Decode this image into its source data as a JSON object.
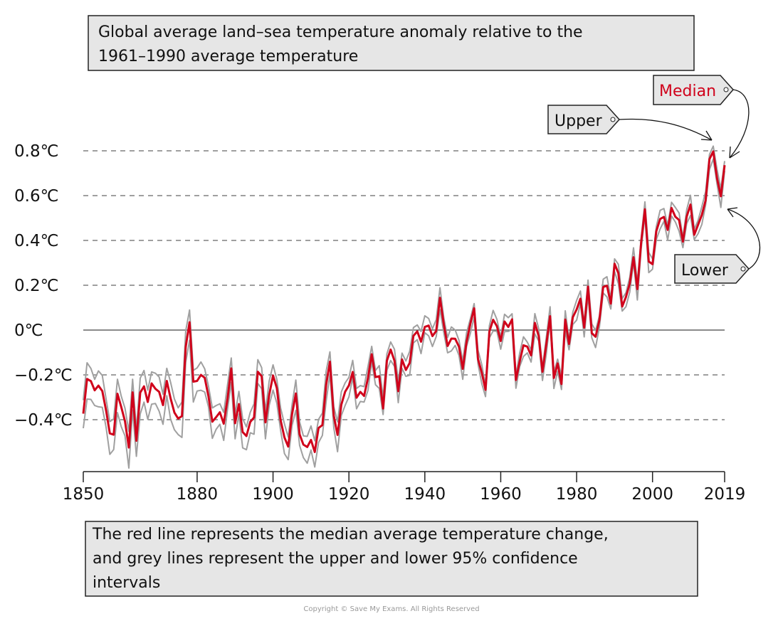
{
  "chart_data": {
    "type": "line",
    "title": [
      "Global average land–sea temperature anomaly relative to the",
      "1961–1990 average temperature"
    ],
    "caption": [
      "The red line represents the median average temperature change,",
      "and grey lines represent the upper and lower 95% confidence",
      "intervals"
    ],
    "xlim": [
      1850,
      2019
    ],
    "ylim": [
      -0.6,
      0.85
    ],
    "x_ticks": [
      1850,
      1880,
      1900,
      1920,
      1940,
      1960,
      1980,
      2000,
      2019
    ],
    "y_ticks": [
      {
        "value": 0.8,
        "label": "0.8℃"
      },
      {
        "value": 0.6,
        "label": "0.6℃"
      },
      {
        "value": 0.4,
        "label": "0.4℃"
      },
      {
        "value": 0.2,
        "label": "0.2℃"
      },
      {
        "value": 0,
        "label": "0℃"
      },
      {
        "value": -0.2,
        "label": "−0.2℃"
      },
      {
        "value": -0.4,
        "label": "−0.4℃"
      }
    ],
    "grid": "horizontal dashed",
    "x_start": 1850,
    "median": [
      -0.373,
      -0.218,
      -0.228,
      -0.269,
      -0.248,
      -0.272,
      -0.358,
      -0.461,
      -0.467,
      -0.284,
      -0.343,
      -0.407,
      -0.524,
      -0.278,
      -0.494,
      -0.279,
      -0.251,
      -0.321,
      -0.238,
      -0.262,
      -0.276,
      -0.335,
      -0.227,
      -0.304,
      -0.368,
      -0.395,
      -0.384,
      -0.075,
      0.035,
      -0.23,
      -0.227,
      -0.2,
      -0.213,
      -0.296,
      -0.409,
      -0.389,
      -0.367,
      -0.418,
      -0.307,
      -0.171,
      -0.416,
      -0.33,
      -0.455,
      -0.473,
      -0.41,
      -0.39,
      -0.186,
      -0.206,
      -0.412,
      -0.289,
      -0.203,
      -0.259,
      -0.402,
      -0.479,
      -0.52,
      -0.377,
      -0.283,
      -0.465,
      -0.511,
      -0.522,
      -0.49,
      -0.544,
      -0.437,
      -0.424,
      -0.244,
      -0.141,
      -0.383,
      -0.468,
      -0.333,
      -0.275,
      -0.247,
      -0.187,
      -0.302,
      -0.276,
      -0.294,
      -0.215,
      -0.108,
      -0.21,
      -0.206,
      -0.35,
      -0.137,
      -0.087,
      -0.137,
      -0.273,
      -0.131,
      -0.178,
      -0.147,
      -0.026,
      -0.006,
      -0.052,
      0.014,
      0.02,
      -0.027,
      -0.004,
      0.144,
      0.025,
      -0.071,
      -0.038,
      -0.039,
      -0.074,
      -0.173,
      -0.052,
      0.028,
      0.097,
      -0.129,
      -0.19,
      -0.267,
      -0.007,
      0.046,
      0.017,
      -0.049,
      0.038,
      0.014,
      0.048,
      -0.223,
      -0.14,
      -0.068,
      -0.074,
      -0.113,
      0.032,
      -0.027,
      -0.186,
      -0.065,
      0.062,
      -0.214,
      -0.149,
      -0.241,
      0.047,
      -0.062,
      0.057,
      0.092,
      0.14,
      0.011,
      0.194,
      -0.014,
      -0.03,
      0.045,
      0.192,
      0.198,
      0.118,
      0.296,
      0.254,
      0.105,
      0.148,
      0.208,
      0.325,
      0.183,
      0.39,
      0.539,
      0.306,
      0.294,
      0.441,
      0.496,
      0.505,
      0.447,
      0.545,
      0.506,
      0.491,
      0.395,
      0.506,
      0.56,
      0.425,
      0.47,
      0.514,
      0.579,
      0.763,
      0.797,
      0.677,
      0.597,
      0.736
    ],
    "confidence_interval": [
      {
        "from": 1850,
        "to": 1879,
        "plus": 0.06,
        "minus": 0.08
      },
      {
        "from": 1880,
        "to": 1919,
        "plus": 0.05,
        "minus": 0.06
      },
      {
        "from": 1920,
        "to": 1949,
        "plus": 0.04,
        "minus": 0.04
      },
      {
        "from": 1950,
        "to": 2019,
        "plus": 0.03,
        "minus": 0.035
      }
    ],
    "series": [
      {
        "name": "Median",
        "color": "#d0021b"
      },
      {
        "name": "Upper",
        "color": "#a0a0a0"
      },
      {
        "name": "Lower",
        "color": "#a0a0a0"
      }
    ]
  },
  "copyright": "Copyright © Save My Exams. All Rights Reserved"
}
